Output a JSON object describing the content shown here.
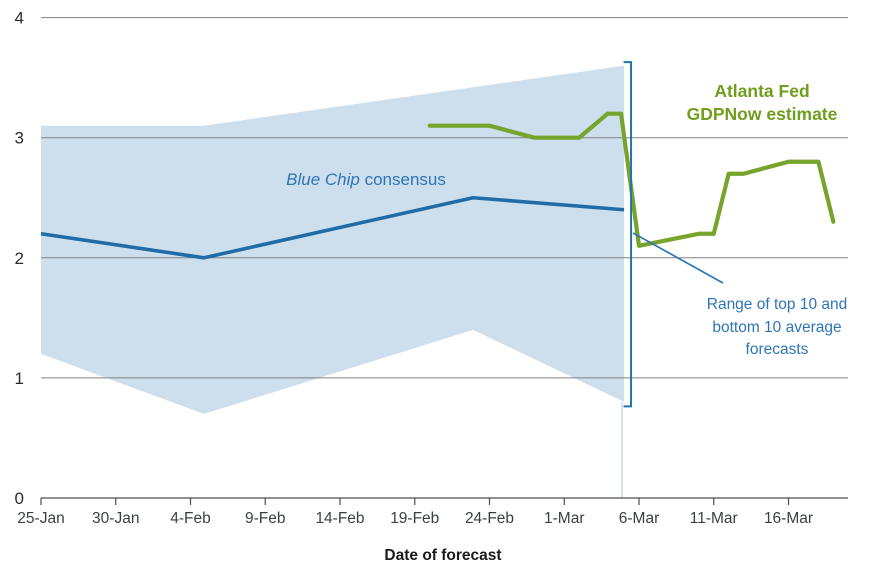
{
  "colors": {
    "gdpnow_line": "#76a42c",
    "gdpnow_text": "#6f9e1d",
    "bluechip_line": "#1f6ca8",
    "bluechip_text": "#2e75b6",
    "band_fill": "#cddfec",
    "band_edge_faint": "#ccdfee",
    "bracket": "#2273af",
    "gridline": "#808080",
    "axis": "#4d4d4d",
    "x_tick_text": "#3a3f47",
    "y_tick_text": "#2b2b2b",
    "xlabel_text": "#1a1a1a"
  },
  "annotations": {
    "gdpnow_label": "Atlanta Fed\nGDPNow estimate",
    "bluechip_label_italic": "Blue Chip",
    "bluechip_label_rest": " consensus",
    "range_label": "Range of top 10 and\nbottom 10 average\nforecasts"
  },
  "chart_data": {
    "type": "line",
    "title": "",
    "xlabel": "Date of forecast",
    "ylabel": "",
    "ylim": [
      0,
      4
    ],
    "y_ticks": [
      0,
      1,
      2,
      3,
      4
    ],
    "x_ticks": [
      {
        "label": "25-Jan",
        "day": 0
      },
      {
        "label": "30-Jan",
        "day": 5
      },
      {
        "label": "4-Feb",
        "day": 10
      },
      {
        "label": "9-Feb",
        "day": 15
      },
      {
        "label": "14-Feb",
        "day": 20
      },
      {
        "label": "19-Feb",
        "day": 25
      },
      {
        "label": "24-Feb",
        "day": 30
      },
      {
        "label": "1-Mar",
        "day": 35
      },
      {
        "label": "6-Mar",
        "day": 40
      },
      {
        "label": "11-Mar",
        "day": 45
      },
      {
        "label": "16-Mar",
        "day": 50
      }
    ],
    "grid": "horizontal",
    "legend_position": "annotations-inline",
    "series": [
      {
        "name": "Range of top 10 and bottom 10 average forecasts",
        "type": "band",
        "top": [
          {
            "date": "25-Jan",
            "day": 0,
            "value": 3.1
          },
          {
            "date": "5-Feb",
            "day": 10.9,
            "value": 3.1
          },
          {
            "date": "5-Mar",
            "day": 39,
            "value": 3.6
          }
        ],
        "bottom": [
          {
            "date": "25-Jan",
            "day": 0,
            "value": 1.2
          },
          {
            "date": "5-Feb",
            "day": 10.9,
            "value": 0.7
          },
          {
            "date": "24-Feb",
            "day": 28.9,
            "value": 1.4
          },
          {
            "date": "5-Mar",
            "day": 39,
            "value": 0.8
          }
        ]
      },
      {
        "name": "Blue Chip consensus",
        "type": "line",
        "points": [
          {
            "date": "25-Jan",
            "day": 0,
            "value": 2.2
          },
          {
            "date": "5-Feb",
            "day": 10.9,
            "value": 2.0
          },
          {
            "date": "24-Feb",
            "day": 28.9,
            "value": 2.5
          },
          {
            "date": "5-Mar",
            "day": 39,
            "value": 2.4
          }
        ]
      },
      {
        "name": "Atlanta Fed GDPNow estimate",
        "type": "line",
        "points": [
          {
            "date": "20-Feb",
            "day": 26,
            "value": 3.1
          },
          {
            "date": "24-Feb",
            "day": 30,
            "value": 3.1
          },
          {
            "date": "27-Feb",
            "day": 33,
            "value": 3.0
          },
          {
            "date": "1-Mar",
            "day": 36,
            "value": 3.0
          },
          {
            "date": "3-Mar",
            "day": 37.9,
            "value": 3.2
          },
          {
            "date": "4-Mar",
            "day": 38.8,
            "value": 3.2
          },
          {
            "date": "6-Mar",
            "day": 40,
            "value": 2.1
          },
          {
            "date": "10-Mar",
            "day": 44,
            "value": 2.2
          },
          {
            "date": "11-Mar",
            "day": 45,
            "value": 2.2
          },
          {
            "date": "12-Mar",
            "day": 46,
            "value": 2.7
          },
          {
            "date": "13-Mar",
            "day": 47,
            "value": 2.7
          },
          {
            "date": "16-Mar",
            "day": 50,
            "value": 2.8
          },
          {
            "date": "18-Mar",
            "day": 52,
            "value": 2.8
          },
          {
            "date": "19-Mar",
            "day": 53,
            "value": 2.3
          }
        ]
      }
    ]
  }
}
